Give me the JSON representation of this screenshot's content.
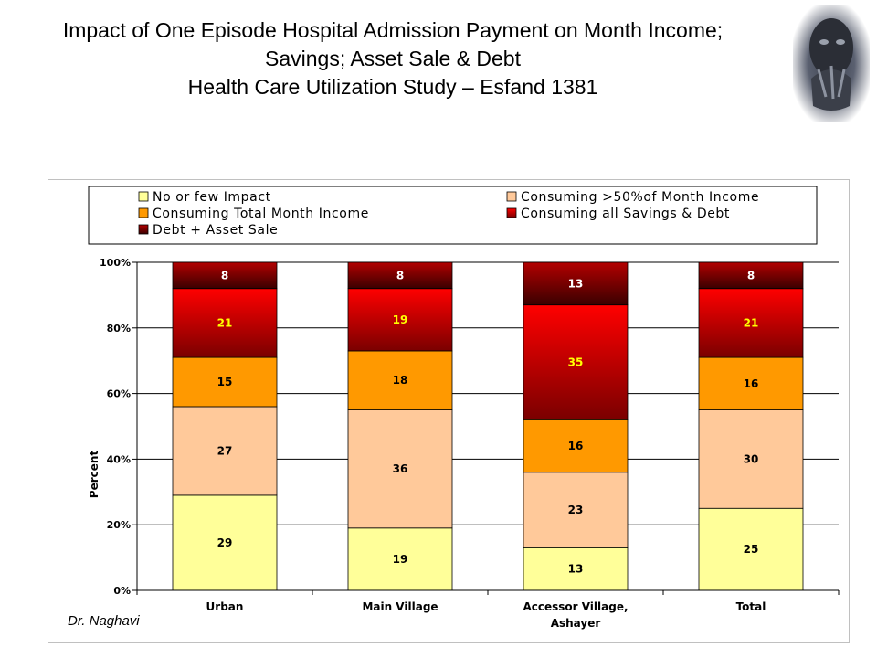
{
  "title": {
    "line1": "Impact of One Episode Hospital Admission Payment on Month Income;",
    "line2": "Savings; Asset Sale & Debt",
    "line3": "Health Care Utilization Study – Esfand 1381"
  },
  "credit": "Dr. Naghavi",
  "photo_icon": "face-photo-icon",
  "chart_data": {
    "type": "bar",
    "stacked": true,
    "percent": true,
    "categories": [
      "Urban",
      "Main Village",
      "Accessor Village, Ashayer",
      "Total"
    ],
    "category_lines": [
      [
        "Urban"
      ],
      [
        "Main Village"
      ],
      [
        "Accessor Village,",
        "Ashayer"
      ],
      [
        "Total"
      ]
    ],
    "ylabel": "Percent",
    "xlabel": "",
    "ylim": [
      0,
      100
    ],
    "yticks": [
      "0%",
      "20%",
      "40%",
      "60%",
      "80%",
      "100%"
    ],
    "grid": true,
    "legend_position": "top",
    "series": [
      {
        "name": "No or few Impact",
        "values": [
          29,
          19,
          13,
          25
        ],
        "color": "#FFFF99",
        "label_color": "#000000"
      },
      {
        "name": "Consuming >50%of Month Income",
        "values": [
          27,
          36,
          23,
          30
        ],
        "color": "#FFC99A",
        "label_color": "#000000"
      },
      {
        "name": "Consuming Total Month Income",
        "values": [
          15,
          18,
          16,
          16
        ],
        "color": "#FF9900",
        "label_color": "#000000"
      },
      {
        "name": "Consuming all Savings & Debt",
        "values": [
          21,
          19,
          35,
          21
        ],
        "color": "#FF0000",
        "label_color": "#FFFF00"
      },
      {
        "name": "Debt + Asset Sale",
        "values": [
          8,
          8,
          13,
          8
        ],
        "color": "#8B0000",
        "label_color": "#FFFFFF"
      }
    ]
  }
}
